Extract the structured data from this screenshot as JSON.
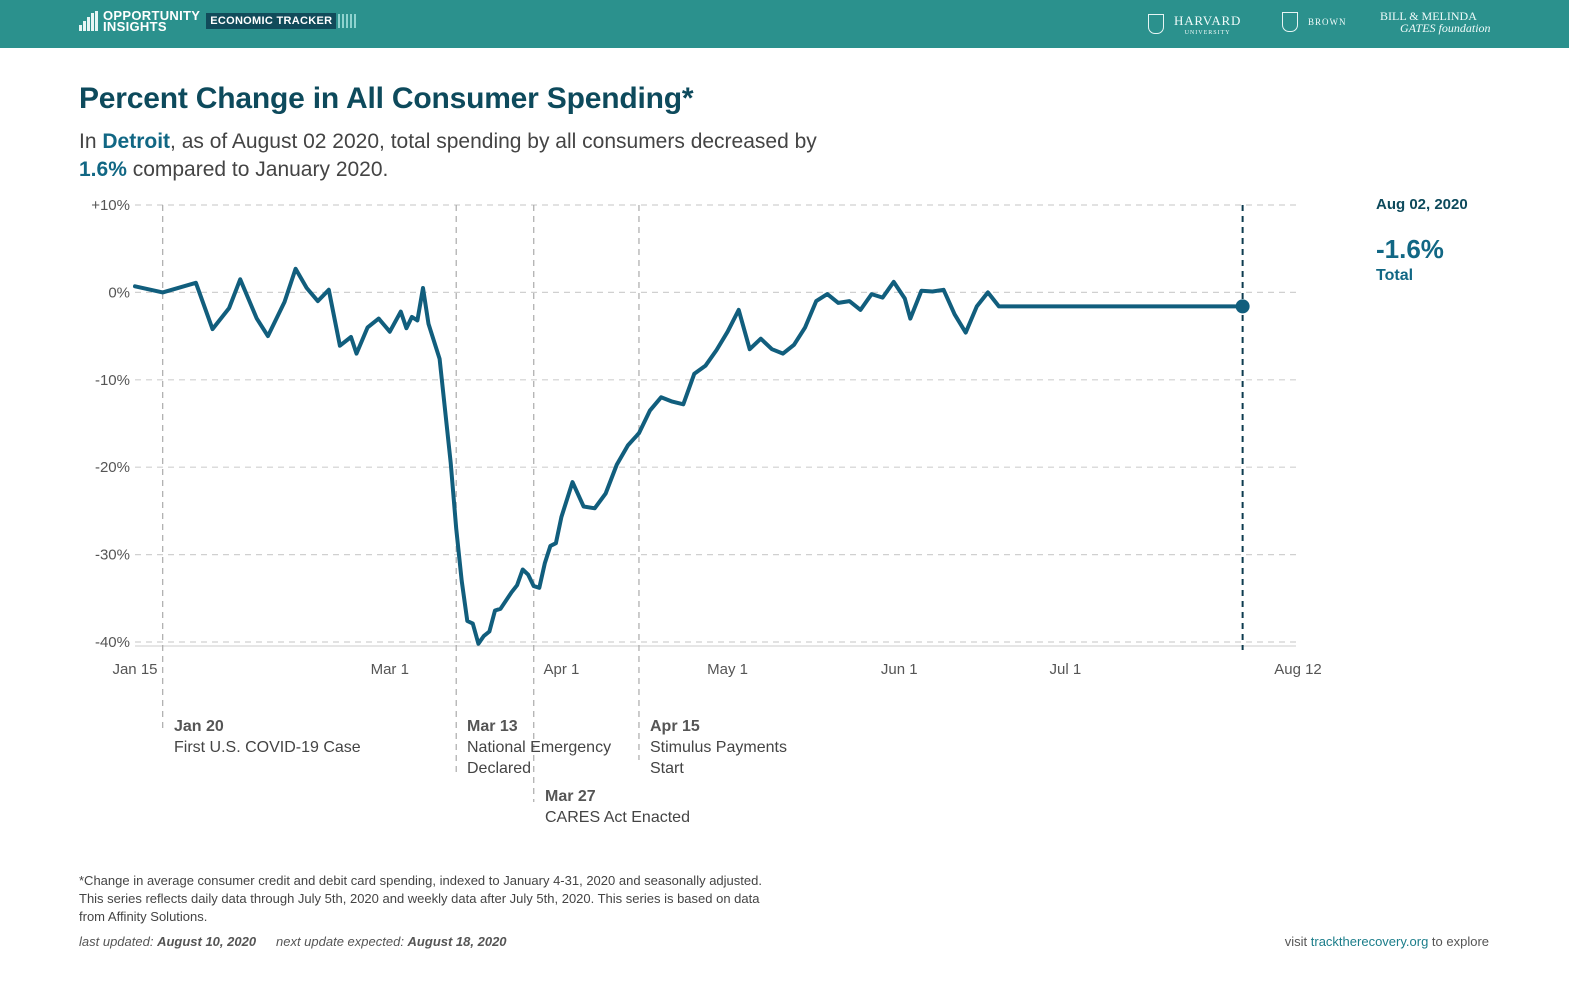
{
  "header": {
    "brand_line1": "OPPORTUNITY",
    "brand_line2": "INSIGHTS",
    "tracker_label": "ECONOMIC TRACKER",
    "partner_harvard": "HARVARD",
    "partner_harvard_sub": "UNIVERSITY",
    "partner_brown": "BROWN",
    "partner_gates_line1": "BILL & MELINDA",
    "partner_gates_line2": "GATES foundation"
  },
  "title": "Percent Change in All Consumer Spending*",
  "subtitle": {
    "p1": "In ",
    "city": "Detroit",
    "p2": ", as of August 02 2020, total spending by all consumers decreased by ",
    "value": "1.6%",
    "p3": " compared to January 2020."
  },
  "side": {
    "date": "Aug 02, 2020",
    "value": "-1.6%",
    "label": "Total"
  },
  "chart_data": {
    "type": "line",
    "ylabel": "",
    "xlabel": "",
    "ylim": [
      -40,
      10
    ],
    "xlim": [
      "2020-01-15",
      "2020-08-12"
    ],
    "y_ticks": [
      10,
      0,
      -10,
      -20,
      -30,
      -40
    ],
    "y_tick_labels": [
      "+10%",
      "0%",
      "-10%",
      "-20%",
      "-30%",
      "-40%"
    ],
    "x_ticks": [
      "2020-01-15",
      "2020-03-01",
      "2020-04-01",
      "2020-05-01",
      "2020-06-01",
      "2020-07-01",
      "2020-08-12"
    ],
    "x_tick_labels": [
      "Jan 15",
      "Mar 1",
      "Apr 1",
      "May 1",
      "Jun 1",
      "Jul 1",
      "Aug 12"
    ],
    "grid": true,
    "series": [
      {
        "color": "#115e7d",
        "x": [
          "2020-01-15",
          "2020-01-20",
          "2020-01-26",
          "2020-01-29",
          "2020-02-01",
          "2020-02-03",
          "2020-02-06",
          "2020-02-08",
          "2020-02-11",
          "2020-02-13",
          "2020-02-15",
          "2020-02-17",
          "2020-02-19",
          "2020-02-21",
          "2020-02-23",
          "2020-02-24",
          "2020-02-26",
          "2020-02-28",
          "2020-03-01",
          "2020-03-03",
          "2020-03-04",
          "2020-03-05",
          "2020-03-06",
          "2020-03-07",
          "2020-03-08",
          "2020-03-10",
          "2020-03-12",
          "2020-03-13",
          "2020-03-14",
          "2020-03-15",
          "2020-03-16",
          "2020-03-17",
          "2020-03-18",
          "2020-03-19",
          "2020-03-20",
          "2020-03-21",
          "2020-03-23",
          "2020-03-24",
          "2020-03-25",
          "2020-03-26",
          "2020-03-27",
          "2020-03-28",
          "2020-03-29",
          "2020-03-30",
          "2020-03-31",
          "2020-04-01",
          "2020-04-03",
          "2020-04-05",
          "2020-04-07",
          "2020-04-09",
          "2020-04-11",
          "2020-04-13",
          "2020-04-15",
          "2020-04-17",
          "2020-04-19",
          "2020-04-21",
          "2020-04-23",
          "2020-04-25",
          "2020-04-27",
          "2020-04-29",
          "2020-05-01",
          "2020-05-03",
          "2020-05-05",
          "2020-05-07",
          "2020-05-09",
          "2020-05-11",
          "2020-05-13",
          "2020-05-15",
          "2020-05-17",
          "2020-05-19",
          "2020-05-21",
          "2020-05-23",
          "2020-05-25",
          "2020-05-27",
          "2020-05-29",
          "2020-05-31",
          "2020-06-02",
          "2020-06-03",
          "2020-06-05",
          "2020-06-07",
          "2020-06-09",
          "2020-06-11",
          "2020-06-13",
          "2020-06-15",
          "2020-06-17",
          "2020-06-19",
          "2020-06-21",
          "2020-06-23",
          "2020-06-25",
          "2020-06-27",
          "2020-06-29",
          "2020-07-01",
          "2020-07-03",
          "2020-07-05",
          "2020-07-12",
          "2020-07-19",
          "2020-07-26",
          "2020-08-02"
        ],
        "y": [
          0.7,
          0,
          1.1,
          -4.2,
          -1.8,
          1.5,
          -3,
          -5,
          -1.1,
          2.7,
          0.5,
          -1,
          0.3,
          -6.1,
          -5.1,
          -7,
          -4,
          -3,
          -4.5,
          -2.2,
          -4.1,
          -2.8,
          -3.2,
          0.5,
          -3.6,
          -7.6,
          -19.5,
          -27,
          -33,
          -37.6,
          -37.9,
          -40.2,
          -39.3,
          -38.8,
          -36.4,
          -36.2,
          -34.3,
          -33.5,
          -31.7,
          -32.3,
          -33.6,
          -33.8,
          -31,
          -29,
          -28.7,
          -25.7,
          -21.7,
          -24.5,
          -24.7,
          -23,
          -19.7,
          -17.5,
          -16.1,
          -13.5,
          -12,
          -12.5,
          -12.8,
          -9.3,
          -8.4,
          -6.6,
          -4.5,
          -2,
          -6.5,
          -5.3,
          -6.5,
          -7,
          -6,
          -4,
          -1,
          -0.2,
          -1.2,
          -1,
          -2,
          -0.2,
          -0.6,
          1.2,
          -0.7,
          -3,
          0.2,
          0.1,
          0.3,
          -2.5,
          -4.6,
          -1.6,
          0,
          -1.6,
          -1.6,
          -1.6,
          -1.6,
          -1.6,
          -1.6,
          -1.6,
          -1.6,
          -1.6,
          -1.6,
          -1.6,
          -1.6,
          -1.6
        ]
      }
    ],
    "annotations": [
      {
        "date": "2020-01-20",
        "label_date": "Jan 20",
        "label": "First U.S. COVID-19 Case"
      },
      {
        "date": "2020-03-13",
        "label_date": "Mar 13",
        "label": "National Emergency Declared"
      },
      {
        "date": "2020-03-27",
        "label_date": "Mar 27",
        "label": "CARES Act Enacted"
      },
      {
        "date": "2020-04-15",
        "label_date": "Apr 15",
        "label": "Stimulus Payments Start"
      }
    ],
    "latest": {
      "date": "2020-08-02",
      "value": -1.6
    }
  },
  "ann_labels": {
    "jan20_date": "Jan 20",
    "jan20_l1": "First U.S. COVID-19 Case",
    "mar13_date": "Mar 13",
    "mar13_l1": "National Emergency",
    "mar13_l2": "Declared",
    "apr15_date": "Apr 15",
    "apr15_l1": "Stimulus Payments",
    "apr15_l2": "Start",
    "mar27_date": "Mar 27",
    "mar27_l1": "CARES Act Enacted"
  },
  "footnote": {
    "line1": "*Change in average consumer credit and debit card spending, indexed to January 4-31, 2020 and seasonally adjusted.",
    "line2": "This series reflects daily data through July 5th, 2020 and weekly data after July 5th, 2020. This series is based on data",
    "line3": "from Affinity Solutions."
  },
  "updates": {
    "last_label": "last updated: ",
    "last_date": "August 10, 2020",
    "next_label": "next update expected: ",
    "next_date": "August 18, 2020"
  },
  "visit": {
    "pre": "visit ",
    "link": "tracktherecovery.org",
    "post": " to explore"
  }
}
